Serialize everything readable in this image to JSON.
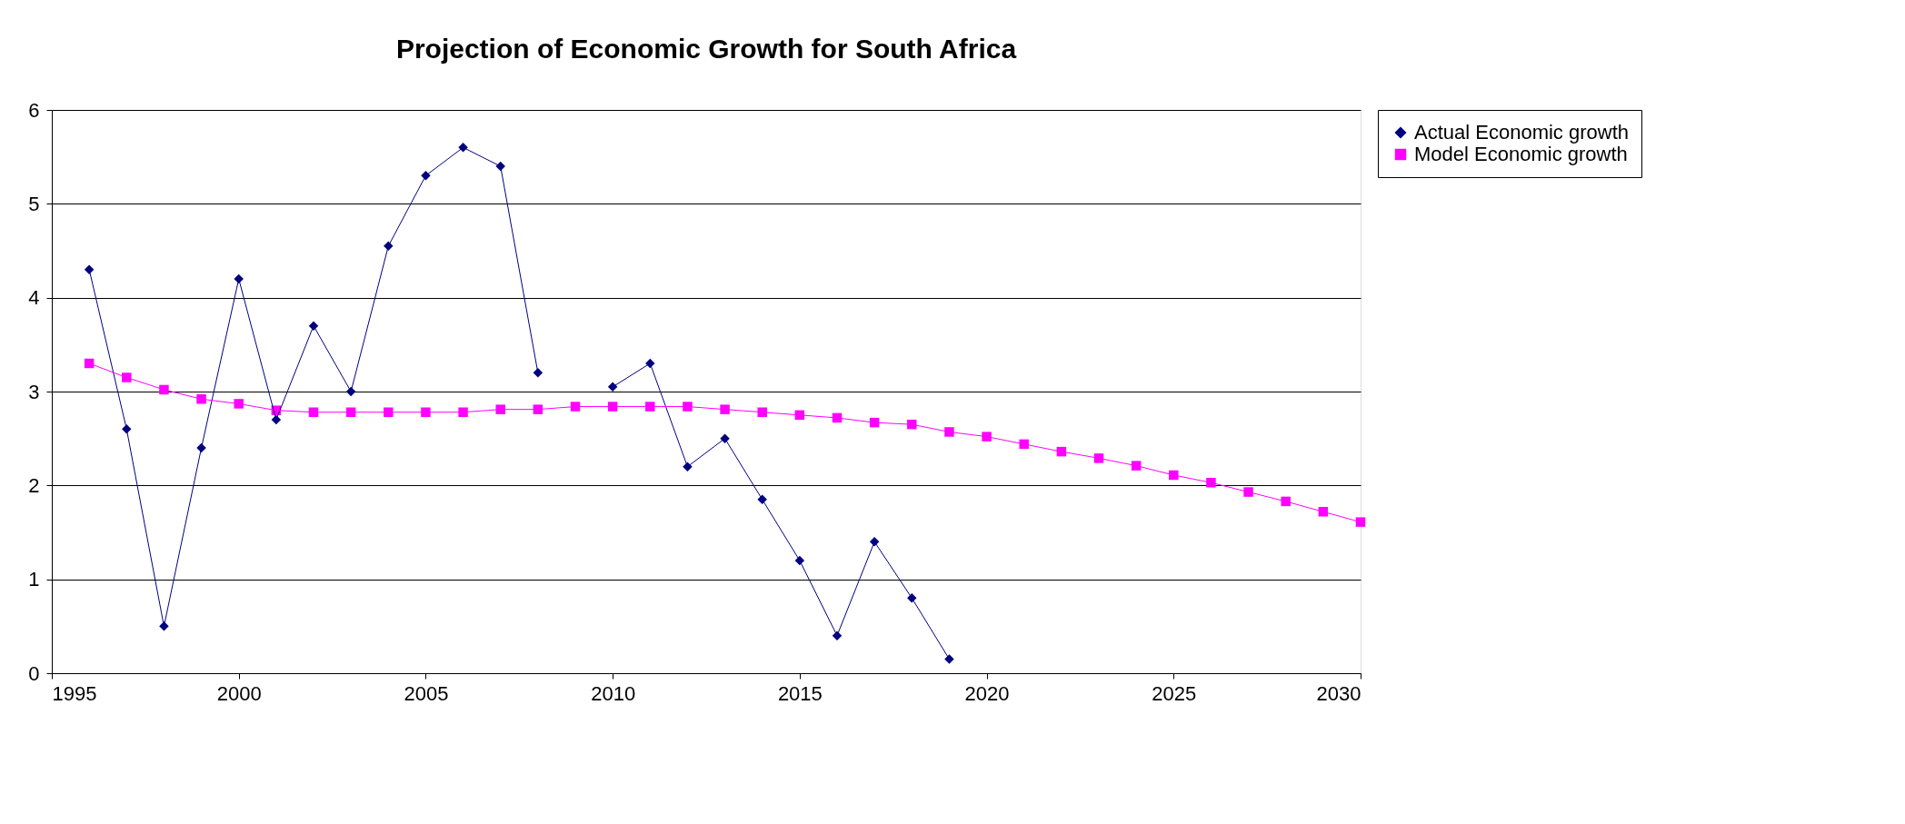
{
  "chart_data": {
    "type": "line",
    "title": "Projection of Economic Growth for South Africa",
    "x": [
      1996,
      1997,
      1998,
      1999,
      2000,
      2001,
      2002,
      2003,
      2004,
      2005,
      2006,
      2007,
      2008,
      2009,
      2010,
      2011,
      2012,
      2013,
      2014,
      2015,
      2016,
      2017,
      2018,
      2019,
      2020,
      2021,
      2022,
      2023,
      2024,
      2025,
      2026,
      2027,
      2028,
      2029,
      2030
    ],
    "series": [
      {
        "name": "Actual Economic growth",
        "color": "#000080",
        "marker": "diamond",
        "values": [
          4.3,
          2.6,
          0.5,
          2.4,
          4.2,
          2.7,
          3.7,
          3.0,
          4.55,
          5.3,
          5.6,
          5.4,
          3.2,
          null,
          3.05,
          3.3,
          2.2,
          2.5,
          1.85,
          1.2,
          0.4,
          1.4,
          0.8,
          0.15,
          null,
          null,
          null,
          null,
          null,
          null,
          null,
          null,
          null,
          null,
          null
        ]
      },
      {
        "name": "Model Economic growth",
        "color": "#ff00ff",
        "marker": "square",
        "values": [
          3.3,
          3.15,
          3.02,
          2.92,
          2.87,
          2.8,
          2.78,
          2.78,
          2.78,
          2.78,
          2.78,
          2.81,
          2.81,
          2.84,
          2.84,
          2.84,
          2.84,
          2.81,
          2.78,
          2.75,
          2.72,
          2.67,
          2.65,
          2.57,
          2.52,
          2.44,
          2.36,
          2.29,
          2.21,
          2.11,
          2.03,
          1.93,
          1.83,
          1.72,
          1.61
        ]
      }
    ],
    "xlim": [
      1995,
      2030
    ],
    "xticks": [
      1995,
      2000,
      2005,
      2010,
      2015,
      2020,
      2025,
      2030
    ],
    "ylim": [
      0,
      6
    ],
    "yticks": [
      0,
      1,
      2,
      3,
      4,
      5,
      6
    ],
    "grid": "y",
    "legend": "right",
    "line_style": "solid"
  }
}
